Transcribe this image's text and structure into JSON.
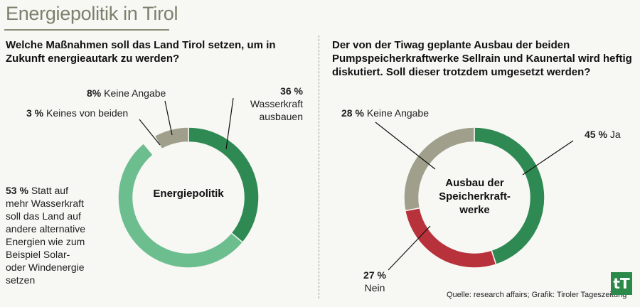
{
  "page": {
    "title": "Energiepolitik in Tirol",
    "source": "Quelle: research affairs; Grafik: Tiroler Tageszeitung",
    "logo_text": "tT"
  },
  "chart_data": [
    {
      "type": "pie",
      "style": "donut",
      "question": "Welche Maßnahmen soll das Land Tirol setzen, um in Zukunft energieautark zu werden?",
      "center_label": "Energiepolitik",
      "slices": [
        {
          "pct": "36 %",
          "value": 36,
          "label_lines": [
            "Wasserkraft",
            "ausbauen"
          ],
          "color": "#2e8a52"
        },
        {
          "pct": "53 %",
          "value": 53,
          "label_lines": [
            "Statt auf",
            "mehr Wasserkraft",
            "soll das Land auf",
            "andere alternative",
            "Energien wie zum",
            "Beispiel Solar-",
            "oder Windenergie",
            "setzen"
          ],
          "color": "#6dbe8e"
        },
        {
          "pct": "3 %",
          "value": 3,
          "label_lines": [
            "Keines von beiden"
          ],
          "color": "#f7f7f4"
        },
        {
          "pct": "8%",
          "value": 8,
          "label_lines": [
            "Keine Angabe"
          ],
          "color": "#9f9f8c"
        }
      ]
    },
    {
      "type": "pie",
      "style": "donut",
      "question": "Der von der Tiwag geplante Ausbau der beiden Pumpspeicherkraftwerke Sellrain und Kaunertal wird heftig diskutiert. Soll dieser trotzdem umgesetzt werden?",
      "center_label_lines": [
        "Ausbau der",
        "Speicherkraft-",
        "werke"
      ],
      "slices": [
        {
          "pct": "45 %",
          "value": 45,
          "label": "Ja",
          "color": "#2e8a52"
        },
        {
          "pct": "27 %",
          "value": 27,
          "label": "Nein",
          "color": "#b8323c"
        },
        {
          "pct": "28 %",
          "value": 28,
          "label": "Keine Angabe",
          "color": "#9f9f8c"
        }
      ]
    }
  ]
}
